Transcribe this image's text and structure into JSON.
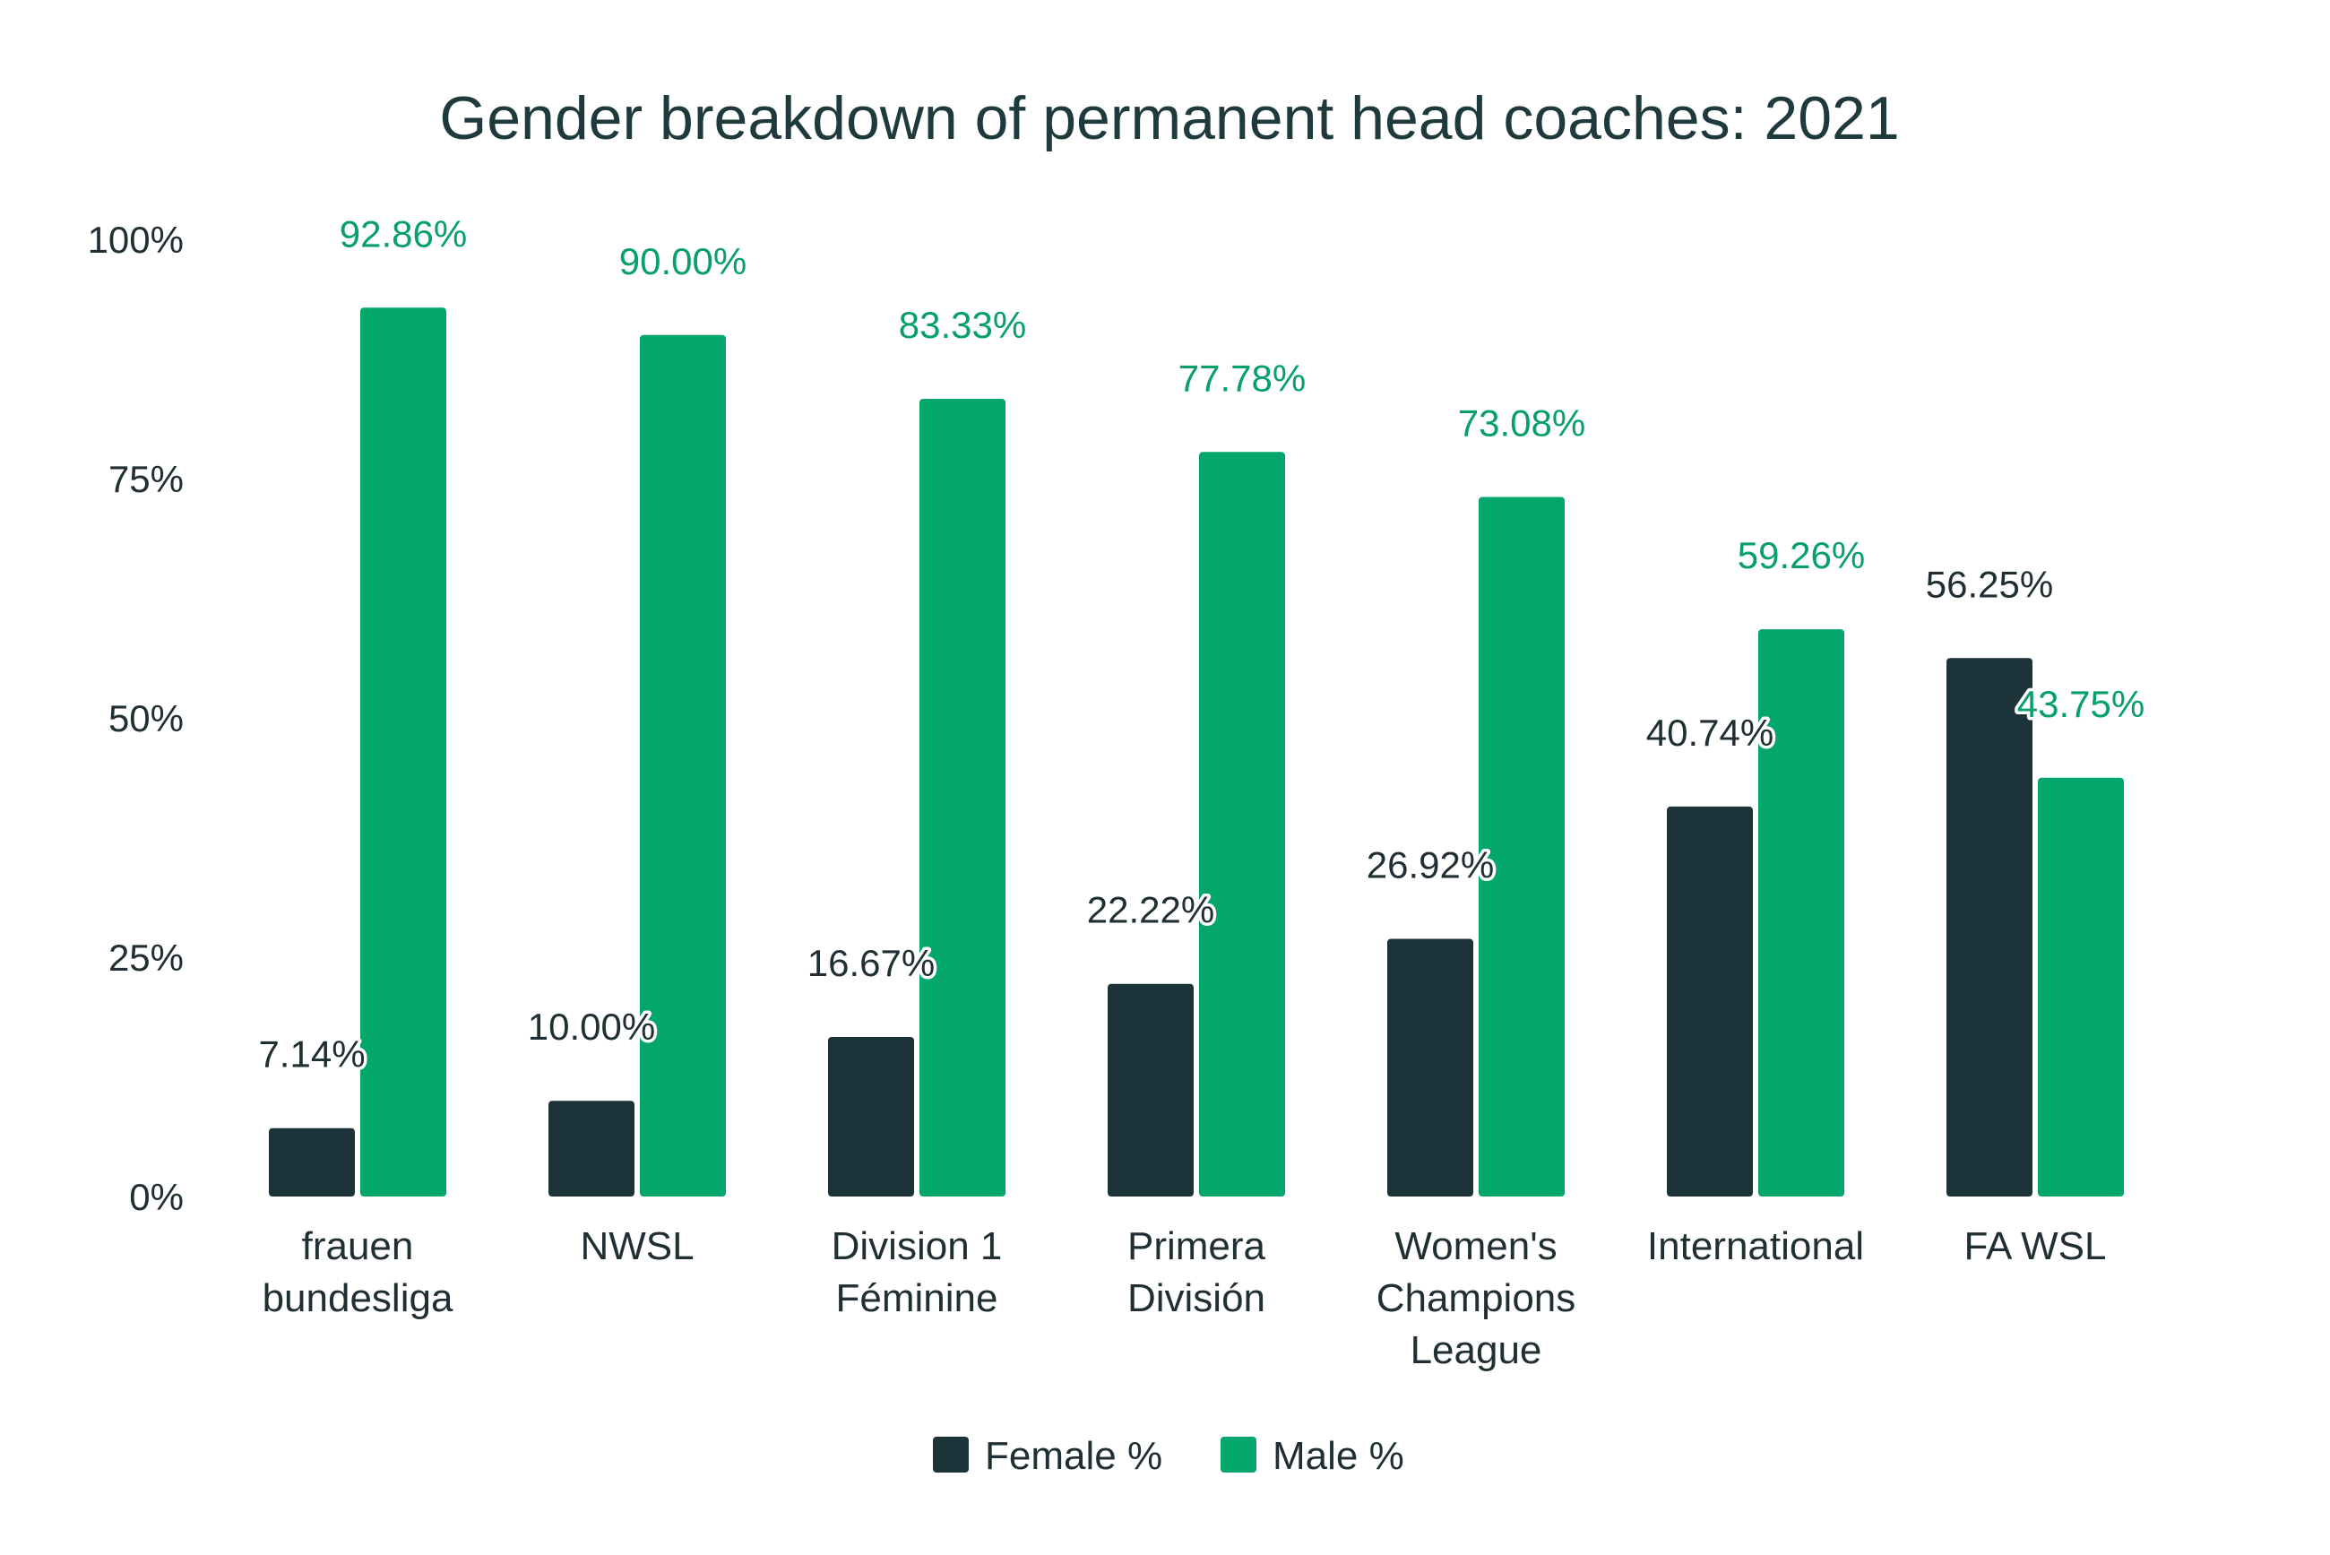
{
  "chart_data": {
    "type": "bar",
    "title": "Gender breakdown of permanent head coaches: 2021",
    "categories": [
      [
        "frauen",
        "bundesliga"
      ],
      [
        "NWSL"
      ],
      [
        "Division 1",
        "Féminine"
      ],
      [
        "Primera",
        "División"
      ],
      [
        "Women's",
        "Champions",
        "League"
      ],
      [
        "International"
      ],
      [
        "FA WSL"
      ]
    ],
    "series": [
      {
        "name": "Female %",
        "color": "#1c333a",
        "values": [
          7.14,
          10.0,
          16.67,
          22.22,
          26.92,
          40.74,
          56.25
        ],
        "labels": [
          "7.14%",
          "10.00%",
          "16.67%",
          "22.22%",
          "26.92%",
          "40.74%",
          "56.25%"
        ]
      },
      {
        "name": "Male %",
        "color": "#03a66b",
        "values": [
          92.86,
          90.0,
          83.33,
          77.78,
          73.08,
          59.26,
          43.75
        ],
        "labels": [
          "92.86%",
          "90.00%",
          "83.33%",
          "77.78%",
          "73.08%",
          "59.26%",
          "43.75%"
        ]
      }
    ],
    "ylim": [
      0,
      100
    ],
    "yticks": [
      0,
      25,
      50,
      75,
      100
    ],
    "ytick_labels": [
      "0%",
      "25%",
      "50%",
      "75%",
      "100%"
    ],
    "grid": false,
    "legend_position": "bottom-center"
  }
}
